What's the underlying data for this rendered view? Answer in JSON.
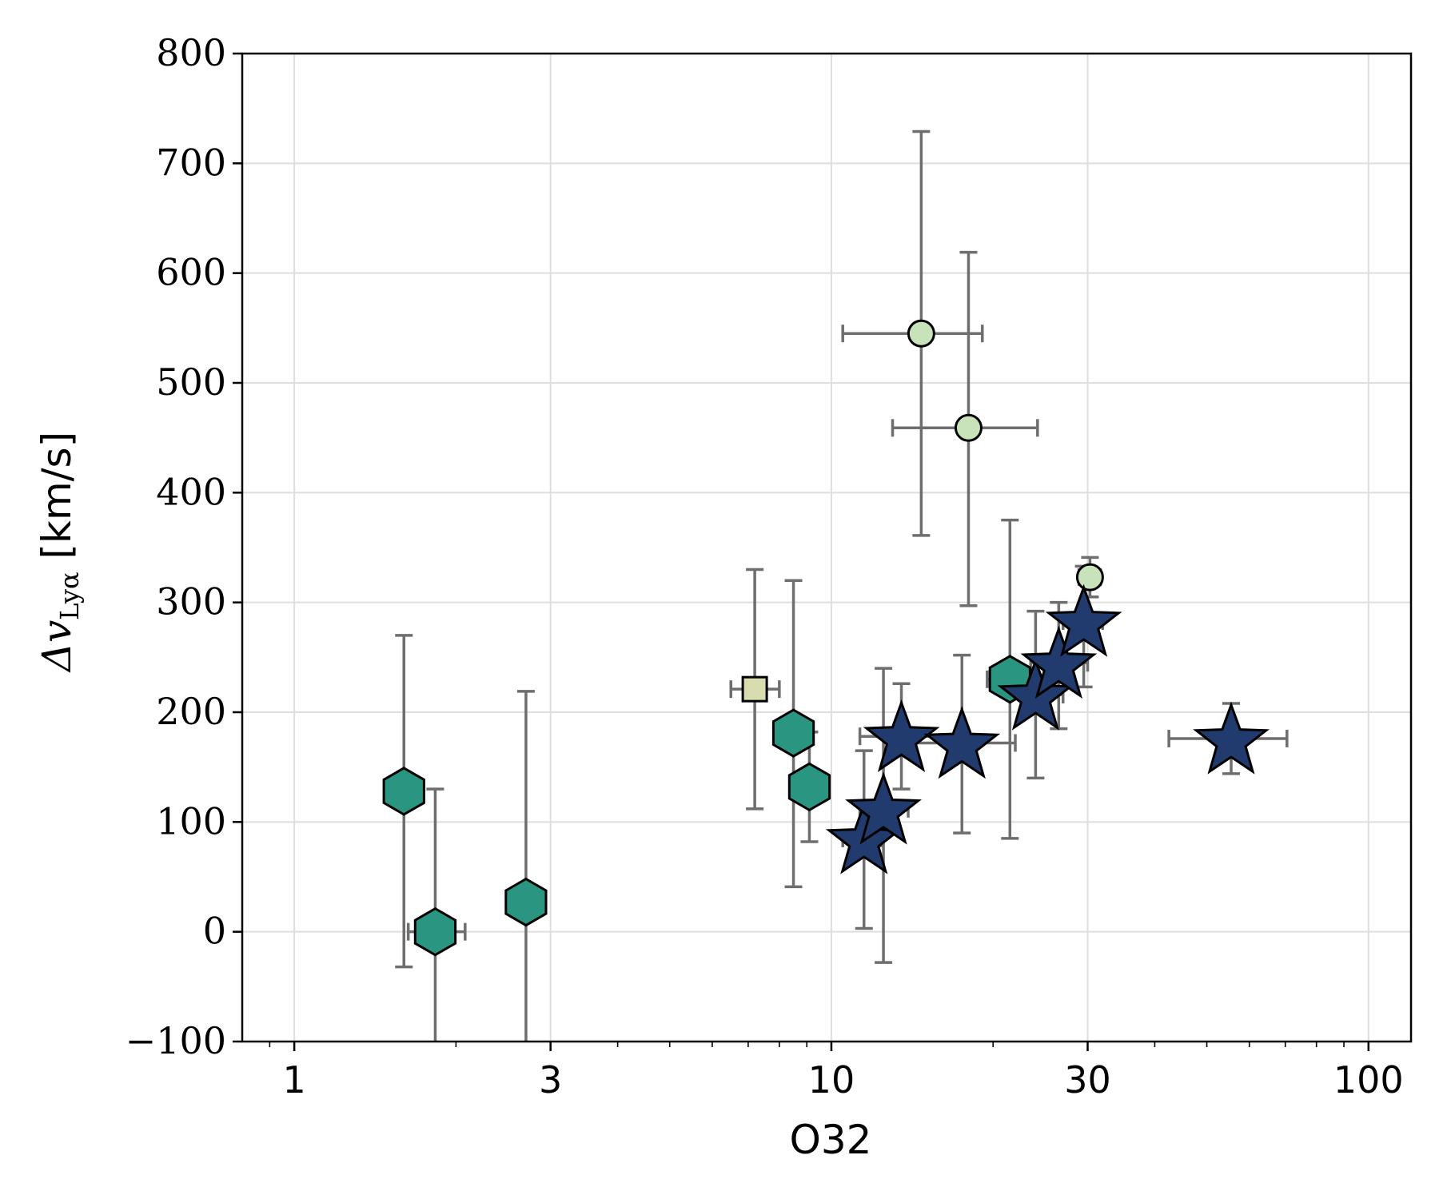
{
  "chart_data": {
    "type": "scatter",
    "xlabel": "O32",
    "ylabel": {
      "prefix": "Δv",
      "subscript": "Lyα",
      "suffix": " [km/s]"
    },
    "xscale": "log",
    "xlim": [
      0.8,
      120
    ],
    "ylim": [
      -100,
      800
    ],
    "xticks": [
      {
        "value": 1,
        "label": "1"
      },
      {
        "value": 3,
        "label": "3"
      },
      {
        "value": 10,
        "label": "10"
      },
      {
        "value": 30,
        "label": "30"
      },
      {
        "value": 100,
        "label": "100"
      }
    ],
    "yticks": [
      {
        "value": -100,
        "label": "−100"
      },
      {
        "value": 0,
        "label": "0"
      },
      {
        "value": 100,
        "label": "100"
      },
      {
        "value": 200,
        "label": "200"
      },
      {
        "value": 300,
        "label": "300"
      },
      {
        "value": 400,
        "label": "400"
      },
      {
        "value": 500,
        "label": "500"
      },
      {
        "value": 600,
        "label": "600"
      },
      {
        "value": 700,
        "label": "700"
      },
      {
        "value": 800,
        "label": "800"
      }
    ],
    "grid": true,
    "legend": null,
    "colors": {
      "errorbar": "#6e6e6e",
      "grid": "#dedede",
      "star": "#213b6e",
      "hexagon": "#2a9681",
      "circle": "#c8e2b9",
      "square": "#d8dcae",
      "edge": "#000000"
    },
    "series": [
      {
        "marker": "hexagon",
        "color": "#2a9681",
        "points": [
          {
            "x": 1.6,
            "y": 128,
            "xerr": [
              0,
              0
            ],
            "yerr": [
              160,
              142
            ]
          },
          {
            "x": 1.83,
            "y": 0,
            "xerr": [
              0.2,
              0.25
            ],
            "yerr": [
              110,
              130
            ]
          },
          {
            "x": 2.7,
            "y": 27,
            "xerr": [
              0.2,
              0.2
            ],
            "yerr": [
              130,
              192
            ]
          },
          {
            "x": 8.5,
            "y": 181,
            "xerr": [
              0.5,
              0.5
            ],
            "yerr": [
              140,
              139
            ]
          },
          {
            "x": 9.1,
            "y": 132,
            "xerr": [
              0.4,
              0.4
            ],
            "yerr": [
              50,
              50
            ]
          },
          {
            "x": 21.5,
            "y": 230,
            "xerr": [
              2,
              2
            ],
            "yerr": [
              145,
              145
            ]
          }
        ]
      },
      {
        "marker": "circle",
        "color": "#c8e2b9",
        "points": [
          {
            "x": 14.7,
            "y": 545,
            "xerr": [
              4.2,
              4.4
            ],
            "yerr": [
              184,
              184
            ]
          },
          {
            "x": 18.0,
            "y": 459,
            "xerr": [
              5.0,
              6.2
            ],
            "yerr": [
              162,
              160
            ]
          },
          {
            "x": 30.3,
            "y": 323,
            "xerr": [
              1.4,
              1.4
            ],
            "yerr": [
              18,
              18
            ]
          }
        ]
      },
      {
        "marker": "square",
        "color": "#d8dcae",
        "points": [
          {
            "x": 7.2,
            "y": 221,
            "xerr": [
              0.7,
              0.8
            ],
            "yerr": [
              109,
              109
            ]
          }
        ]
      },
      {
        "marker": "star",
        "color": "#213b6e",
        "points": [
          {
            "x": 11.5,
            "y": 85,
            "xerr": [
              1.0,
              0.9
            ],
            "yerr": [
              82,
              80
            ]
          },
          {
            "x": 12.5,
            "y": 112,
            "xerr": [
              1.2,
              1.4
            ],
            "yerr": [
              140,
              128
            ]
          },
          {
            "x": 13.5,
            "y": 178,
            "xerr": [
              2.2,
              4.0
            ],
            "yerr": [
              48,
              48
            ]
          },
          {
            "x": 17.5,
            "y": 172,
            "xerr": [
              3.5,
              4.5
            ],
            "yerr": [
              82,
              80
            ]
          },
          {
            "x": 24.0,
            "y": 216,
            "xerr": [
              2.5,
              3.0
            ],
            "yerr": [
              76,
              76
            ]
          },
          {
            "x": 26.5,
            "y": 245,
            "xerr": [
              3.0,
              3.5
            ],
            "yerr": [
              60,
              55
            ]
          },
          {
            "x": 29.5,
            "y": 283,
            "xerr": [
              2.5,
              2.5
            ],
            "yerr": [
              60,
              50
            ]
          },
          {
            "x": 55.5,
            "y": 176,
            "xerr": [
              13,
              15
            ],
            "yerr": [
              32,
              32
            ]
          }
        ]
      }
    ]
  }
}
